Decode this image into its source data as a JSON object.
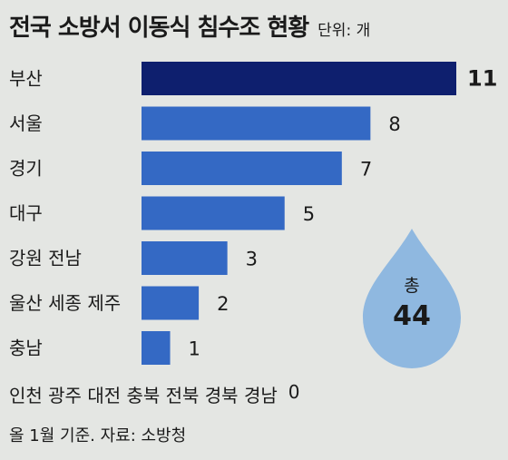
{
  "header": {
    "title": "전국 소방서 이동식 침수조 현황",
    "unit": "단위: 개"
  },
  "chart_data": {
    "type": "bar",
    "orientation": "horizontal",
    "title": "전국 소방서 이동식 침수조 현황",
    "unit": "단위: 개",
    "categories": [
      "부산",
      "서울",
      "경기",
      "대구",
      "강원 전남",
      "울산 세종 제주",
      "충남"
    ],
    "values": [
      11,
      8,
      7,
      5,
      3,
      2,
      1
    ],
    "zero_value_regions": {
      "label": "인천 광주 대전 충북 전북 경북 경남",
      "value": 0,
      "value_label": "0"
    },
    "total": {
      "label": "총",
      "value": 44
    },
    "xlim": [
      0,
      11
    ],
    "grid": false,
    "colors": {
      "highlight": "#0e1f6e",
      "bar": "#3469c4",
      "drop": "#8fb8e0"
    }
  },
  "footer": {
    "note": "올 1월 기준. 자료: 소방청"
  }
}
